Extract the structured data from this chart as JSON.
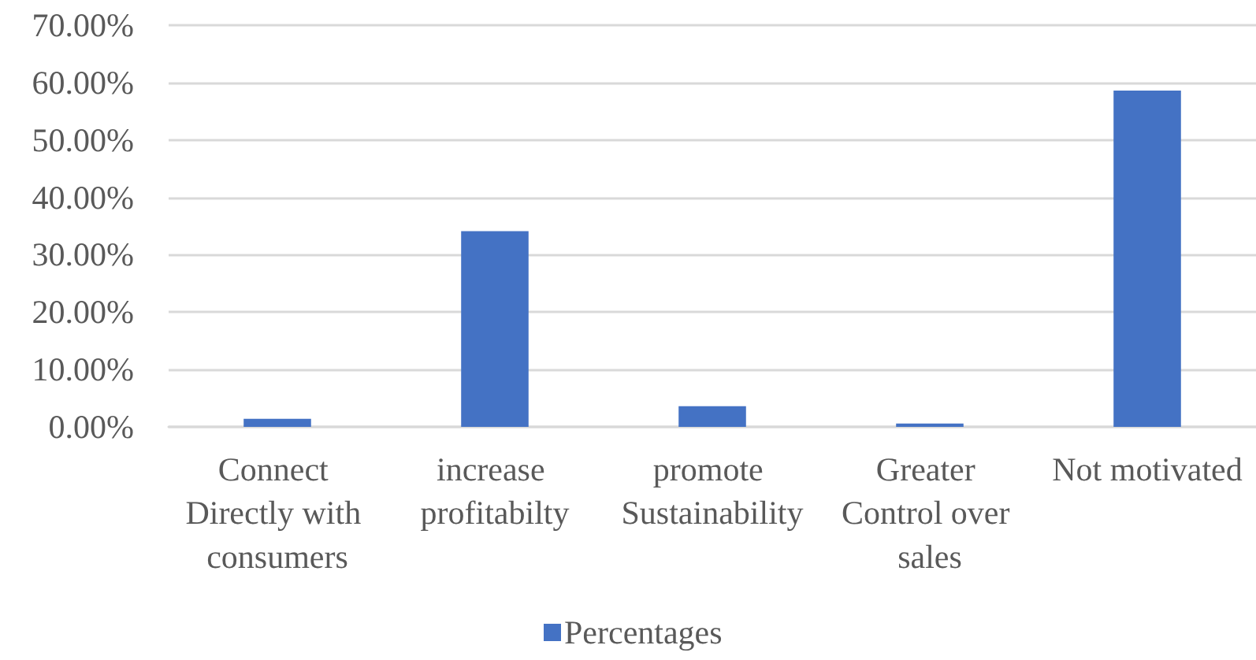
{
  "chart_data": {
    "type": "bar",
    "categories": [
      "Connect Directly with consumers",
      "increase profitabilty",
      "promote Sustainability",
      "Greater Control over sales",
      "Not motivated"
    ],
    "series": [
      {
        "name": "Percentages",
        "color": "#4472c4",
        "values": [
          1.4,
          34.1,
          3.6,
          0.6,
          58.6
        ]
      }
    ],
    "ylim": [
      0,
      70
    ],
    "yticks": [
      {
        "value": 0,
        "label": "0.00%"
      },
      {
        "value": 10,
        "label": "10.00%"
      },
      {
        "value": 20,
        "label": "20.00%"
      },
      {
        "value": 30,
        "label": "30.00%"
      },
      {
        "value": 40,
        "label": "40.00%"
      },
      {
        "value": 50,
        "label": "50.00%"
      },
      {
        "value": 60,
        "label": "60.00%"
      },
      {
        "value": 70,
        "label": "70.00%"
      }
    ],
    "grid": "y",
    "legend": "bottom"
  }
}
